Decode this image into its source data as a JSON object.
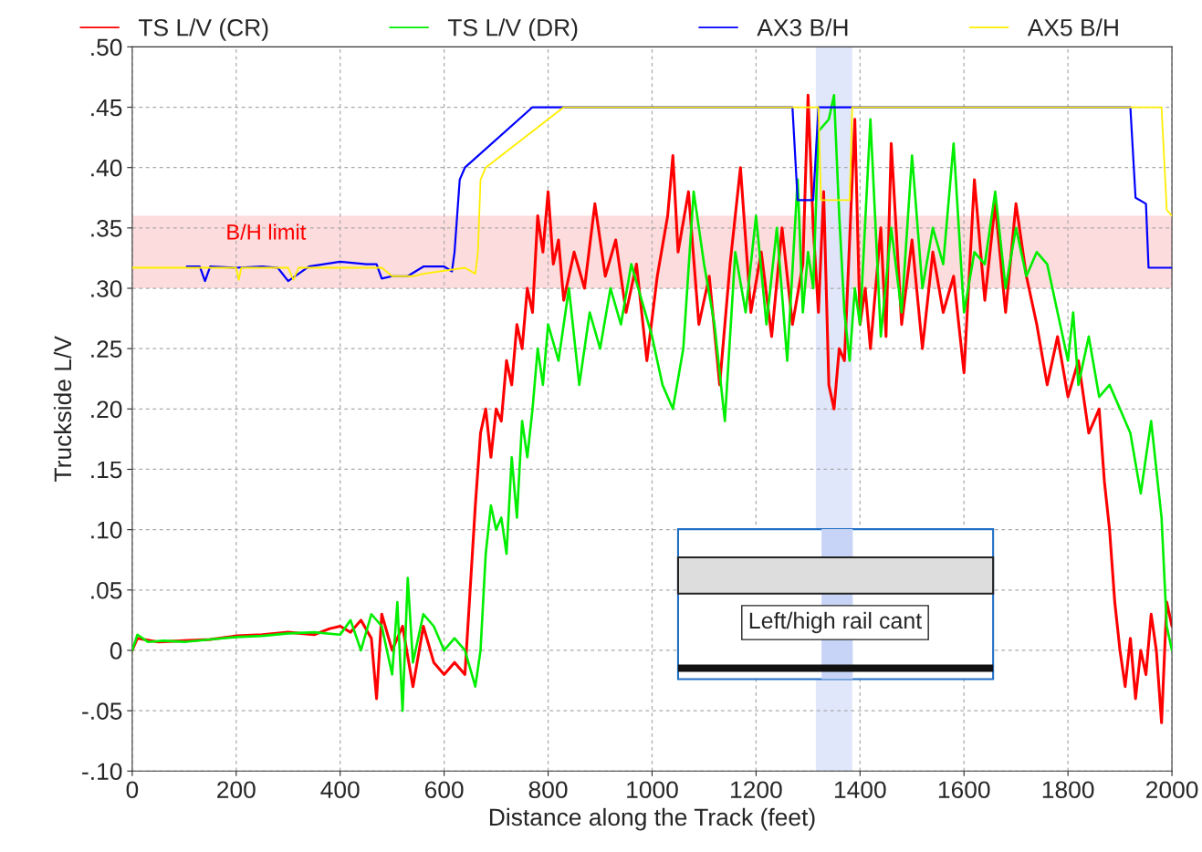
{
  "chart_data": {
    "type": "line",
    "xlabel": "Distance along the Track (feet)",
    "ylabel": "Truckside L/V",
    "xlim": [
      0,
      2000
    ],
    "xticks": [
      0,
      200,
      400,
      600,
      800,
      1000,
      1200,
      1400,
      1600,
      1800,
      2000
    ],
    "ylim": [
      -0.1,
      0.5
    ],
    "yticks": [
      {
        "value": -0.1,
        "label": "-.10"
      },
      {
        "value": -0.05,
        "label": "-.05"
      },
      {
        "value": 0,
        "label": "0"
      },
      {
        "value": 0.05,
        "label": ".05"
      },
      {
        "value": 0.1,
        "label": ".10"
      },
      {
        "value": 0.15,
        "label": ".15"
      },
      {
        "value": 0.2,
        "label": ".20"
      },
      {
        "value": 0.25,
        "label": ".25"
      },
      {
        "value": 0.3,
        "label": ".30"
      },
      {
        "value": 0.35,
        "label": ".35"
      },
      {
        "value": 0.4,
        "label": ".40"
      },
      {
        "value": 0.45,
        "label": ".45"
      },
      {
        "value": 0.5,
        "label": ".50"
      }
    ],
    "grid": true,
    "legend": "top",
    "line_style": "solid",
    "marker": "none",
    "series": [
      {
        "name": "TS L/V (CR)",
        "color": "#ff0000",
        "x": [
          0,
          10,
          50,
          100,
          150,
          200,
          250,
          300,
          350,
          380,
          400,
          420,
          440,
          460,
          470,
          480,
          500,
          520,
          540,
          560,
          580,
          600,
          620,
          640,
          650,
          660,
          670,
          680,
          690,
          700,
          710,
          720,
          730,
          740,
          750,
          760,
          770,
          780,
          790,
          800,
          810,
          820,
          830,
          850,
          870,
          890,
          910,
          930,
          950,
          970,
          990,
          1010,
          1030,
          1040,
          1050,
          1070,
          1090,
          1110,
          1130,
          1150,
          1170,
          1190,
          1210,
          1230,
          1250,
          1270,
          1290,
          1300,
          1310,
          1320,
          1330,
          1340,
          1350,
          1360,
          1370,
          1380,
          1390,
          1400,
          1410,
          1420,
          1440,
          1450,
          1460,
          1480,
          1500,
          1520,
          1540,
          1560,
          1580,
          1600,
          1620,
          1640,
          1660,
          1680,
          1700,
          1720,
          1740,
          1760,
          1780,
          1800,
          1820,
          1840,
          1860,
          1870,
          1880,
          1890,
          1900,
          1910,
          1920,
          1930,
          1940,
          1950,
          1960,
          1970,
          1980,
          1990,
          2000
        ],
        "values": [
          0,
          0.01,
          0.007,
          0.008,
          0.009,
          0.012,
          0.013,
          0.015,
          0.013,
          0.018,
          0.02,
          0.015,
          0.025,
          0.01,
          -0.04,
          0.03,
          0,
          0.02,
          -0.03,
          0.02,
          -0.01,
          -0.02,
          -0.01,
          -0.02,
          0.05,
          0.12,
          0.18,
          0.2,
          0.16,
          0.2,
          0.19,
          0.24,
          0.22,
          0.27,
          0.25,
          0.3,
          0.28,
          0.36,
          0.33,
          0.38,
          0.32,
          0.34,
          0.29,
          0.33,
          0.3,
          0.37,
          0.31,
          0.34,
          0.28,
          0.32,
          0.24,
          0.31,
          0.36,
          0.41,
          0.33,
          0.38,
          0.27,
          0.31,
          0.22,
          0.32,
          0.4,
          0.28,
          0.33,
          0.26,
          0.35,
          0.27,
          0.32,
          0.46,
          0.35,
          0.28,
          0.38,
          0.22,
          0.2,
          0.25,
          0.24,
          0.34,
          0.44,
          0.27,
          0.3,
          0.25,
          0.35,
          0.26,
          0.42,
          0.27,
          0.34,
          0.25,
          0.33,
          0.28,
          0.31,
          0.23,
          0.39,
          0.29,
          0.37,
          0.28,
          0.37,
          0.31,
          0.27,
          0.22,
          0.26,
          0.21,
          0.24,
          0.18,
          0.2,
          0.14,
          0.1,
          0.04,
          0,
          -0.03,
          0.01,
          -0.04,
          0,
          -0.02,
          0.03,
          0,
          -0.06,
          0.04,
          0.02
        ]
      },
      {
        "name": "TS L/V (DR)",
        "color": "#00ee00",
        "x": [
          0,
          10,
          30,
          60,
          100,
          150,
          200,
          250,
          300,
          350,
          400,
          420,
          440,
          460,
          480,
          500,
          510,
          520,
          530,
          540,
          560,
          580,
          600,
          620,
          640,
          660,
          670,
          680,
          690,
          700,
          710,
          720,
          730,
          740,
          750,
          760,
          770,
          780,
          790,
          800,
          820,
          840,
          860,
          880,
          900,
          920,
          940,
          960,
          980,
          1000,
          1020,
          1040,
          1060,
          1080,
          1100,
          1120,
          1140,
          1160,
          1180,
          1200,
          1220,
          1240,
          1260,
          1280,
          1290,
          1300,
          1310,
          1320,
          1340,
          1350,
          1360,
          1370,
          1380,
          1390,
          1400,
          1420,
          1440,
          1460,
          1480,
          1500,
          1520,
          1540,
          1560,
          1580,
          1600,
          1620,
          1640,
          1660,
          1680,
          1700,
          1720,
          1740,
          1760,
          1780,
          1800,
          1810,
          1820,
          1840,
          1860,
          1880,
          1900,
          1920,
          1940,
          1960,
          1980,
          1990,
          2000
        ],
        "values": [
          0,
          0.013,
          0.007,
          0.008,
          0.007,
          0.009,
          0.011,
          0.012,
          0.014,
          0.015,
          0.013,
          0.025,
          0,
          0.03,
          0.02,
          -0.02,
          0.04,
          -0.05,
          0.06,
          -0.01,
          0.03,
          0.02,
          0,
          0.01,
          0,
          -0.03,
          0,
          0.08,
          0.12,
          0.1,
          0.11,
          0.08,
          0.16,
          0.11,
          0.19,
          0.16,
          0.2,
          0.25,
          0.22,
          0.27,
          0.24,
          0.3,
          0.22,
          0.28,
          0.25,
          0.3,
          0.27,
          0.32,
          0.29,
          0.26,
          0.22,
          0.2,
          0.25,
          0.38,
          0.32,
          0.27,
          0.19,
          0.33,
          0.28,
          0.36,
          0.27,
          0.35,
          0.24,
          0.39,
          0.28,
          0.33,
          0.3,
          0.43,
          0.44,
          0.46,
          0.36,
          0.28,
          0.24,
          0.3,
          0.27,
          0.44,
          0.26,
          0.35,
          0.28,
          0.41,
          0.3,
          0.35,
          0.32,
          0.42,
          0.28,
          0.33,
          0.32,
          0.38,
          0.3,
          0.35,
          0.31,
          0.33,
          0.32,
          0.28,
          0.24,
          0.28,
          0.22,
          0.26,
          0.21,
          0.22,
          0.2,
          0.18,
          0.13,
          0.19,
          0.11,
          0.02,
          0
        ]
      },
      {
        "name": "AX3 B/H",
        "color": "#0000ff",
        "x": [
          105,
          130,
          140,
          150,
          200,
          250,
          280,
          300,
          340,
          400,
          450,
          470,
          480,
          500,
          530,
          560,
          600,
          615,
          620,
          630,
          640,
          770,
          1270,
          1280,
          1310,
          1320,
          1920,
          1930,
          1950,
          1955,
          2000
        ],
        "values": [
          0.318,
          0.318,
          0.306,
          0.318,
          0.317,
          0.318,
          0.317,
          0.306,
          0.318,
          0.322,
          0.32,
          0.32,
          0.308,
          0.31,
          0.31,
          0.318,
          0.318,
          0.314,
          0.33,
          0.39,
          0.4,
          0.45,
          0.45,
          0.373,
          0.373,
          0.45,
          0.45,
          0.375,
          0.37,
          0.317,
          0.317
        ]
      },
      {
        "name": "AX5 B/H",
        "color": "#ffee00",
        "x": [
          0,
          200,
          205,
          210,
          300,
          310,
          320,
          480,
          500,
          540,
          560,
          640,
          660,
          665,
          670,
          680,
          830,
          1320,
          1325,
          1380,
          1385,
          1980,
          1990,
          2000
        ],
        "values": [
          0.317,
          0.317,
          0.307,
          0.317,
          0.317,
          0.307,
          0.317,
          0.317,
          0.31,
          0.31,
          0.312,
          0.317,
          0.312,
          0.33,
          0.39,
          0.4,
          0.45,
          0.45,
          0.373,
          0.373,
          0.45,
          0.45,
          0.365,
          0.36
        ]
      }
    ],
    "bands": [
      {
        "axis": "y",
        "from": 0.3,
        "to": 0.36,
        "label": "B/H limit",
        "color": "#fcdcdc"
      },
      {
        "axis": "x",
        "from": 1315,
        "to": 1385,
        "color": "#dde4fb"
      }
    ],
    "annotations": [
      "Left/high rail cant"
    ]
  }
}
